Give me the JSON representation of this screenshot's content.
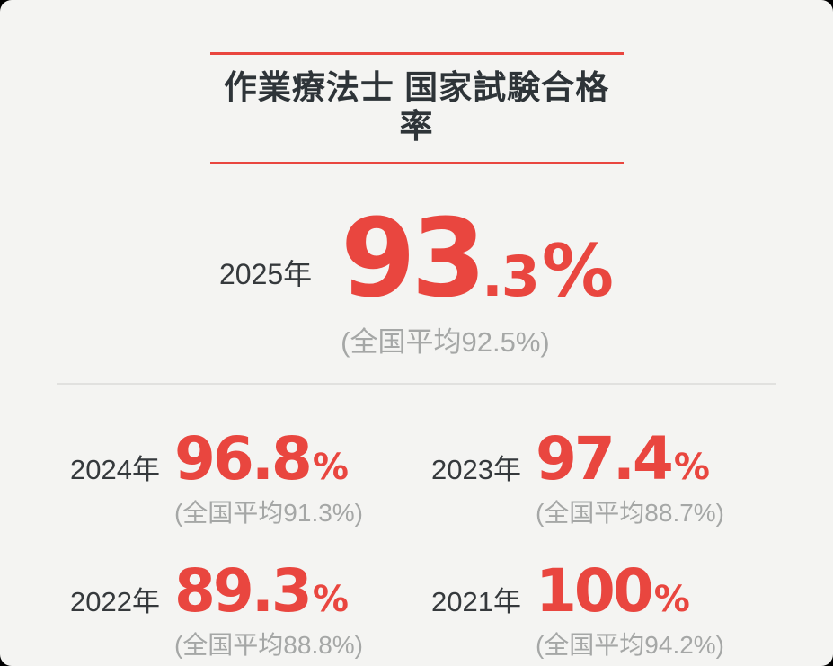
{
  "card": {
    "title": "作業療法士 国家試験合格率",
    "colors": {
      "accent_red": "#e9463f",
      "background": "#f4f4f2",
      "title_text": "#2e3438",
      "year_text": "#35393c",
      "average_text": "#a5a7a6",
      "divider": "#e1e1df"
    }
  },
  "hero": {
    "year": "2025年",
    "value_int": "93",
    "value_dec": ".3",
    "percent_sign": "%",
    "national_average": "(全国平均92.5%)"
  },
  "stats": [
    {
      "year": "2024年",
      "value": "96.8",
      "percent_sign": "%",
      "national_average": "(全国平均91.3%)"
    },
    {
      "year": "2023年",
      "value": "97.4",
      "percent_sign": "%",
      "national_average": "(全国平均88.7%)"
    },
    {
      "year": "2022年",
      "value": "89.3",
      "percent_sign": "%",
      "national_average": "(全国平均88.8%)"
    },
    {
      "year": "2021年",
      "value": "100",
      "percent_sign": "%",
      "national_average": "(全国平均94.2%)"
    }
  ],
  "chart_data": {
    "type": "table",
    "title": "作業療法士 国家試験合格率",
    "categories": [
      "2025年",
      "2024年",
      "2023年",
      "2022年",
      "2021年"
    ],
    "series": [
      {
        "name": "合格率",
        "values": [
          93.3,
          96.8,
          97.4,
          89.3,
          100
        ]
      },
      {
        "name": "全国平均",
        "values": [
          92.5,
          91.3,
          88.7,
          88.8,
          94.2
        ]
      }
    ],
    "value_unit": "%",
    "layout": "hero stat for latest year on top, 2x2 grid of previous years below"
  }
}
